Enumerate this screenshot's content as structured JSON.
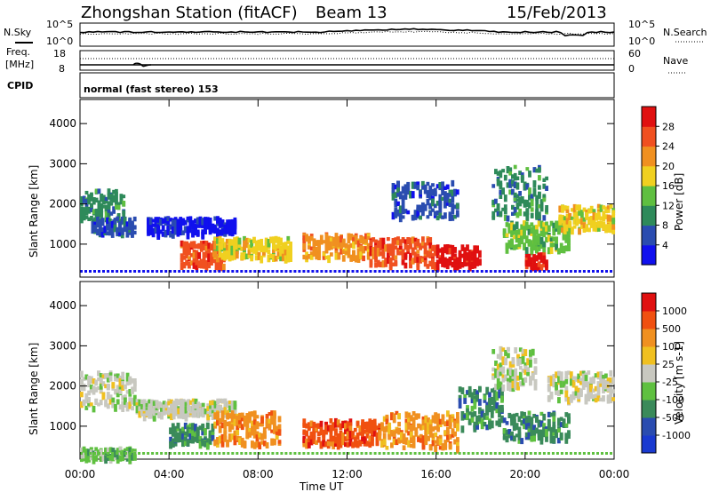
{
  "header": {
    "station": "Zhongshan Station (fitACF)",
    "beam": "Beam 13",
    "date": "15/Feb/2013"
  },
  "top_strip": {
    "left_label": "N.Sky",
    "left_ticks": [
      "10^5",
      "10^0"
    ],
    "right_label": "N.Search",
    "right_ticks": [
      "10^5",
      "10^0"
    ]
  },
  "freq_strip": {
    "left_label_1": "Freq.",
    "left_label_2": "[MHz]",
    "left_ticks": [
      "18",
      "8"
    ],
    "right_label": "Nave",
    "right_ticks": [
      "60",
      "0"
    ]
  },
  "cpid": {
    "label": "CPID",
    "mode": "normal (fast stereo) 153"
  },
  "chart_data": [
    {
      "type": "heatmap",
      "name": "power",
      "ylabel": "Slant Range [km]",
      "ylim": [
        180,
        4600
      ],
      "yticks": [
        "1000",
        "2000",
        "3000",
        "4000"
      ],
      "xlabel": "",
      "colorbar": {
        "label": "Power [dB]",
        "ticks": [
          "4",
          "8",
          "12",
          "16",
          "20",
          "24",
          "28"
        ],
        "colors": [
          "#1010ee",
          "#2a4cb0",
          "#2e8a5a",
          "#5fbf40",
          "#f0d020",
          "#f09020",
          "#f05020",
          "#e01010"
        ]
      },
      "bands": [
        {
          "start": 0.0,
          "end": 2.0,
          "range_low": 1600,
          "range_high": 2400,
          "level": 2
        },
        {
          "start": 0.5,
          "end": 2.5,
          "range_low": 1300,
          "range_high": 1700,
          "level": 1
        },
        {
          "start": 3.0,
          "end": 7.0,
          "range_low": 1300,
          "range_high": 1700,
          "level": 0
        },
        {
          "start": 4.5,
          "end": 6.5,
          "range_low": 500,
          "range_high": 1100,
          "level": 6
        },
        {
          "start": 6.0,
          "end": 9.5,
          "range_low": 700,
          "range_high": 1200,
          "level": 4
        },
        {
          "start": 10.0,
          "end": 13.0,
          "range_low": 700,
          "range_high": 1300,
          "level": 5
        },
        {
          "start": 13.0,
          "end": 16.0,
          "range_low": 500,
          "range_high": 1200,
          "level": 6
        },
        {
          "start": 16.0,
          "end": 18.0,
          "range_low": 500,
          "range_high": 1000,
          "level": 7
        },
        {
          "start": 14.0,
          "end": 17.0,
          "range_low": 1700,
          "range_high": 2600,
          "level": 1
        },
        {
          "start": 18.5,
          "end": 21.0,
          "range_low": 1700,
          "range_high": 3000,
          "level": 2
        },
        {
          "start": 19.0,
          "end": 22.0,
          "range_low": 900,
          "range_high": 1600,
          "level": 3
        },
        {
          "start": 20.0,
          "end": 21.0,
          "range_low": 500,
          "range_high": 800,
          "level": 7
        },
        {
          "start": 21.5,
          "end": 24.0,
          "range_low": 1400,
          "range_high": 2000,
          "level": 4
        }
      ]
    },
    {
      "type": "heatmap",
      "name": "velocity",
      "ylabel": "Slant Range [km]",
      "ylim": [
        180,
        4600
      ],
      "yticks": [
        "1000",
        "2000",
        "3000",
        "4000"
      ],
      "xlabel": "Time UT",
      "xticks": [
        "00:00",
        "04:00",
        "08:00",
        "12:00",
        "16:00",
        "20:00",
        "00:00"
      ],
      "colorbar": {
        "label": "Velocity [m s-1]",
        "ticks": [
          "1000",
          "500",
          "100",
          "25",
          "-25",
          "-100",
          "-500",
          "-1000"
        ],
        "colors": [
          "#1a3ad0",
          "#2a4cb0",
          "#3a8a5a",
          "#5fc040",
          "#c8c8c0",
          "#f0c020",
          "#f09020",
          "#f05010",
          "#e01010"
        ]
      },
      "bands": [
        {
          "start": 0.0,
          "end": 2.5,
          "range_low": 1500,
          "range_high": 2400,
          "level": 4
        },
        {
          "start": 2.5,
          "end": 7.0,
          "range_low": 1300,
          "range_high": 1700,
          "level": 4
        },
        {
          "start": 0.0,
          "end": 2.5,
          "range_low": 200,
          "range_high": 500,
          "level": 3
        },
        {
          "start": 4.0,
          "end": 6.0,
          "range_low": 600,
          "range_high": 1100,
          "level": 2
        },
        {
          "start": 6.0,
          "end": 9.0,
          "range_low": 600,
          "range_high": 1400,
          "level": 6
        },
        {
          "start": 10.0,
          "end": 13.5,
          "range_low": 600,
          "range_high": 1200,
          "level": 7
        },
        {
          "start": 13.5,
          "end": 17.0,
          "range_low": 500,
          "range_high": 1400,
          "level": 6
        },
        {
          "start": 17.0,
          "end": 19.0,
          "range_low": 1000,
          "range_high": 2000,
          "level": 2
        },
        {
          "start": 18.5,
          "end": 20.5,
          "range_low": 2000,
          "range_high": 3000,
          "level": 4
        },
        {
          "start": 21.0,
          "end": 24.0,
          "range_low": 1700,
          "range_high": 2400,
          "level": 4
        },
        {
          "start": 19.0,
          "end": 22.0,
          "range_low": 700,
          "range_high": 1400,
          "level": 2
        }
      ]
    }
  ]
}
